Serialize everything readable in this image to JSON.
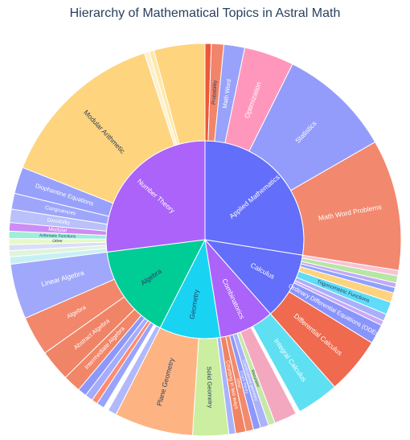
{
  "chart_data": {
    "type": "sunburst",
    "title": "Hierarchy of Mathematical Topics in Astral Math",
    "inner": [
      {
        "label": "Applied Mathematics",
        "value": 27.5,
        "color": "#636efa"
      },
      {
        "label": "Calculus",
        "value": 11.0,
        "color": "#636efa"
      },
      {
        "label": "Combinatorics",
        "value": 9.0,
        "color": "#ab63fa"
      },
      {
        "label": "Geometry",
        "value": 10.0,
        "color": "#19d3f3"
      },
      {
        "label": "Algebra",
        "value": 15.5,
        "color": "#00cc96"
      },
      {
        "label": "Number Theory",
        "value": 27.0,
        "color": "#ab63fa"
      }
    ],
    "outer": [
      {
        "parent": 0,
        "label": "",
        "value": 0.6,
        "color": "#ef553b"
      },
      {
        "parent": 0,
        "label": "Probability",
        "value": 1.2,
        "color": "#f0856b"
      },
      {
        "parent": 0,
        "label": "Math Word",
        "value": 2.0,
        "color": "#98a2fa"
      },
      {
        "parent": 0,
        "label": "Optimization",
        "value": 4.8,
        "color": "#ff97bc"
      },
      {
        "parent": 0,
        "label": "Statistics",
        "value": 10.9,
        "color": "#939cfb"
      },
      {
        "parent": 0,
        "label": "Math Word Problems",
        "value": 12.6,
        "color": "#f2886e"
      },
      {
        "parent": 1,
        "label": "",
        "value": 0.7,
        "color": "#f9c2d6"
      },
      {
        "parent": 1,
        "label": "",
        "value": 0.9,
        "color": "#b7e6a5"
      },
      {
        "parent": 1,
        "label": "",
        "value": 0.6,
        "color": "#c3a8f8"
      },
      {
        "parent": 1,
        "label": "",
        "value": 0.7,
        "color": "#8ea2fb"
      },
      {
        "parent": 1,
        "label": "",
        "value": 1.2,
        "color": "#ffd27f"
      },
      {
        "parent": 1,
        "label": "Trigonometric Functions",
        "value": 1.6,
        "color": "#5fdcf7"
      },
      {
        "parent": 1,
        "label": "",
        "value": 0.9,
        "color": "#a8b0fb"
      },
      {
        "parent": 1,
        "label": "",
        "value": 0.6,
        "color": "#c9a8fb"
      },
      {
        "parent": 1,
        "label": "Ordinary Differential Equations (ODEs)",
        "value": 2.5,
        "color": "#8a95fb"
      },
      {
        "parent": 1,
        "label": "Differential Calculus",
        "value": 7.2,
        "color": "#ef6a4e"
      },
      {
        "parent": 2,
        "label": "Integral Calculus",
        "value": 8.2,
        "color": "#5ee0f2"
      },
      {
        "parent": 2,
        "label": "",
        "value": 0.8,
        "color": "#ffffff"
      },
      {
        "parent": 2,
        "label": "",
        "value": 4.4,
        "color": "#f4a8c0"
      },
      {
        "parent": 2,
        "label": "Recursion",
        "value": 1.3,
        "color": "#c5e8a8"
      },
      {
        "parent": 2,
        "label": "Combinatorial geometry",
        "value": 1.6,
        "color": "#a9b2fb"
      },
      {
        "parent": 2,
        "label": "Graph theory",
        "value": 1.4,
        "color": "#8c98fb"
      },
      {
        "parent": 2,
        "label": "Other",
        "value": 1.5,
        "color": "#f28a6e"
      },
      {
        "parent": 2,
        "label": "Counting in two ways",
        "value": 2.0,
        "color": "#f18363"
      },
      {
        "parent": 3,
        "label": "",
        "value": 0.6,
        "color": "#a8b3fb"
      },
      {
        "parent": 3,
        "label": "Solid Geometry",
        "value": 3.2,
        "color": "#cbeea0"
      },
      {
        "parent": 3,
        "label": "Plane Geometry",
        "value": 7.0,
        "color": "#fdb482"
      },
      {
        "parent": 4,
        "label": "",
        "value": 0.9,
        "color": "#b1b9fb"
      },
      {
        "parent": 4,
        "label": "",
        "value": 0.5,
        "color": "#ffffff"
      },
      {
        "parent": 4,
        "label": "",
        "value": 0.8,
        "color": "#9aa3fb"
      },
      {
        "parent": 4,
        "label": "",
        "value": 0.6,
        "color": "#ff8b73"
      },
      {
        "parent": 4,
        "label": "",
        "value": 0.8,
        "color": "#a4acfb"
      },
      {
        "parent": 4,
        "label": "",
        "value": 0.9,
        "color": "#8e98fb"
      },
      {
        "parent": 4,
        "label": "Intermediate Algebra",
        "value": 1.8,
        "color": "#f18668"
      },
      {
        "parent": 4,
        "label": "Abstract Algebra",
        "value": 3.2,
        "color": "#f08466"
      },
      {
        "parent": 4,
        "label": "Algebra",
        "value": 4.0,
        "color": "#f3876b"
      },
      {
        "parent": 4,
        "label": "Linear Algebra",
        "value": 5.6,
        "color": "#a0a8fb"
      },
      {
        "parent": 5,
        "label": "",
        "value": 0.6,
        "color": "#c8f0f4"
      },
      {
        "parent": 5,
        "label": "",
        "value": 0.5,
        "color": "#dff3dd"
      },
      {
        "parent": 5,
        "label": "",
        "value": 0.5,
        "color": "#d9def8"
      },
      {
        "parent": 5,
        "label": "Other",
        "value": 0.5,
        "color": "#e8f7c7"
      },
      {
        "parent": 5,
        "label": "Arithmetic Functions",
        "value": 0.6,
        "color": "#9eeedb"
      },
      {
        "parent": 5,
        "label": "Modular",
        "value": 0.7,
        "color": "#cd8cf6"
      },
      {
        "parent": 5,
        "label": "Divisibility",
        "value": 1.1,
        "color": "#b9c0fa"
      },
      {
        "parent": 5,
        "label": "Congruences",
        "value": 1.3,
        "color": "#9ea6fb"
      },
      {
        "parent": 5,
        "label": "Diophantine Equations",
        "value": 2.2,
        "color": "#97a0fb"
      },
      {
        "parent": 5,
        "label": "Modular Arithmetic",
        "value": 14.0,
        "color": "#fed47e"
      },
      {
        "parent": 5,
        "label": "",
        "value": 0.4,
        "color": "#fdf0d0"
      },
      {
        "parent": 5,
        "label": "",
        "value": 0.4,
        "color": "#ffe9a8"
      },
      {
        "parent": 5,
        "label": "",
        "value": 4.2,
        "color": "#fed47e"
      }
    ]
  }
}
